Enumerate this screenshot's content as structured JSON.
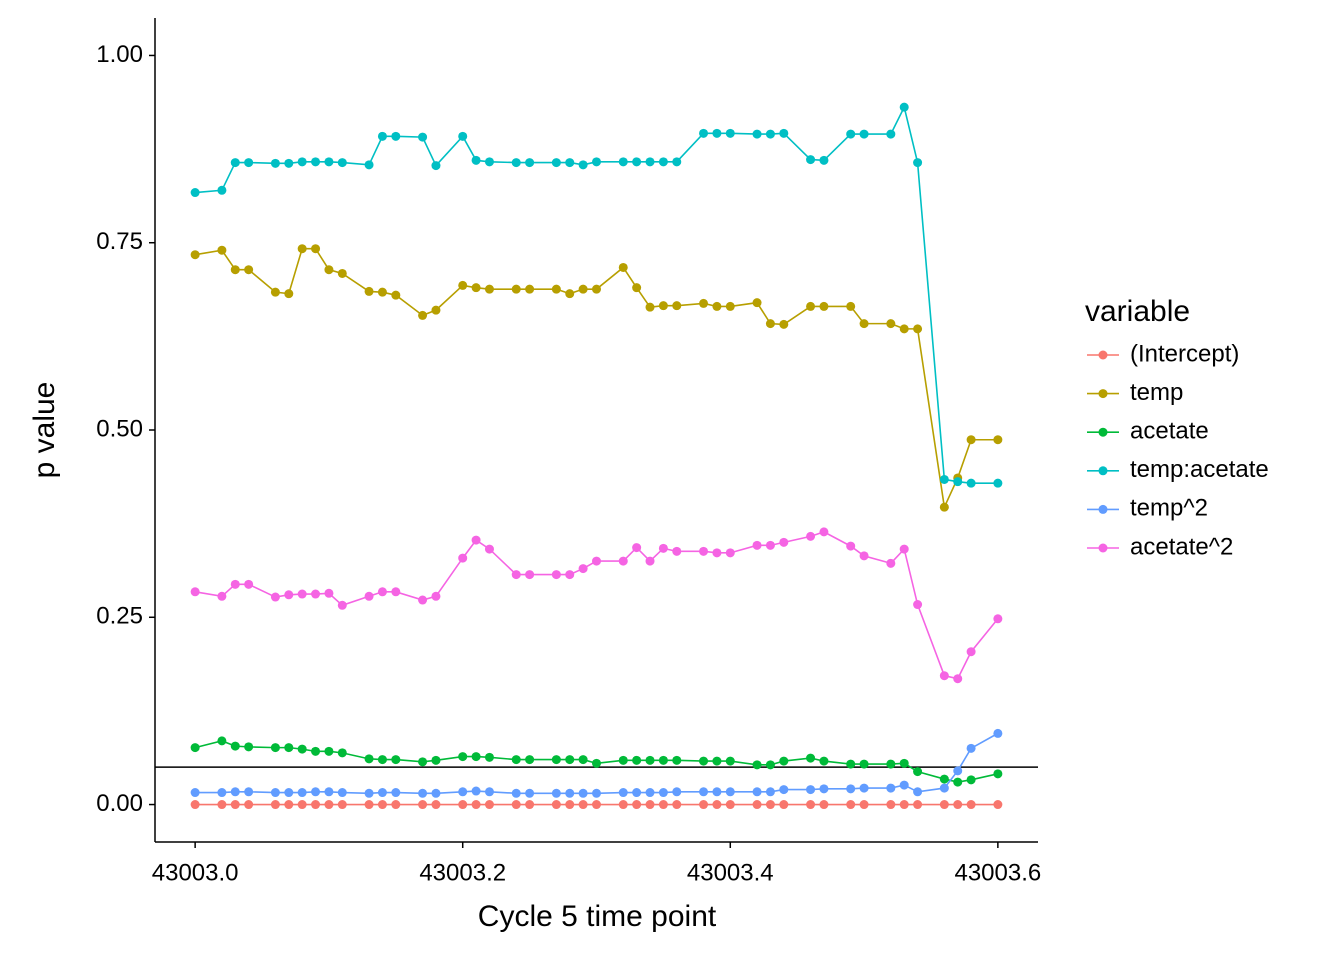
{
  "chart_data": {
    "type": "line",
    "x_label": "Cycle 5 time point",
    "y_label": "p value",
    "legend_title": "variable",
    "legend_position": "right",
    "x": [
      43003.0,
      43003.02,
      43003.03,
      43003.04,
      43003.06,
      43003.07,
      43003.08,
      43003.09,
      43003.1,
      43003.11,
      43003.13,
      43003.14,
      43003.15,
      43003.17,
      43003.18,
      43003.2,
      43003.21,
      43003.22,
      43003.24,
      43003.25,
      43003.27,
      43003.28,
      43003.29,
      43003.3,
      43003.32,
      43003.33,
      43003.34,
      43003.35,
      43003.36,
      43003.38,
      43003.39,
      43003.4,
      43003.42,
      43003.43,
      43003.44,
      43003.46,
      43003.47,
      43003.49,
      43003.5,
      43003.52,
      43003.53,
      43003.54,
      43003.56,
      43003.57,
      43003.58,
      43003.6
    ],
    "series": [
      {
        "name": "(Intercept)",
        "color": "#F8766D",
        "values": [
          0,
          0,
          0,
          0,
          0,
          0,
          0,
          0,
          0,
          0,
          0,
          0,
          0,
          0,
          0,
          0,
          0,
          0,
          0,
          0,
          0,
          0,
          0,
          0,
          0,
          0,
          0,
          0,
          0,
          0,
          0,
          0,
          0,
          0,
          0,
          0,
          0,
          0,
          0,
          0,
          0,
          0,
          0,
          0,
          0,
          0
        ]
      },
      {
        "name": "temp",
        "color": "#B79F00",
        "values": [
          0.734,
          0.74,
          0.714,
          0.714,
          0.684,
          0.682,
          0.742,
          0.742,
          0.714,
          0.709,
          0.685,
          0.684,
          0.68,
          0.653,
          0.66,
          0.693,
          0.69,
          0.688,
          0.688,
          0.688,
          0.688,
          0.682,
          0.688,
          0.688,
          0.717,
          0.69,
          0.664,
          0.666,
          0.666,
          0.669,
          0.665,
          0.665,
          0.67,
          0.642,
          0.641,
          0.665,
          0.665,
          0.665,
          0.642,
          0.642,
          0.635,
          0.635,
          0.397,
          0.436,
          0.487,
          0.487
        ]
      },
      {
        "name": "acetate",
        "color": "#00BA38",
        "values": [
          0.076,
          0.085,
          0.078,
          0.077,
          0.076,
          0.076,
          0.074,
          0.071,
          0.071,
          0.069,
          0.061,
          0.06,
          0.06,
          0.057,
          0.059,
          0.064,
          0.064,
          0.063,
          0.06,
          0.06,
          0.06,
          0.06,
          0.06,
          0.055,
          0.059,
          0.059,
          0.059,
          0.059,
          0.059,
          0.058,
          0.058,
          0.058,
          0.053,
          0.053,
          0.058,
          0.062,
          0.058,
          0.054,
          0.054,
          0.054,
          0.055,
          0.044,
          0.034,
          0.03,
          0.033,
          0.041
        ]
      },
      {
        "name": "temp:acetate",
        "color": "#00BFC4",
        "values": [
          0.817,
          0.82,
          0.857,
          0.857,
          0.856,
          0.856,
          0.858,
          0.858,
          0.858,
          0.857,
          0.854,
          0.892,
          0.892,
          0.891,
          0.853,
          0.892,
          0.86,
          0.858,
          0.857,
          0.857,
          0.857,
          0.857,
          0.854,
          0.858,
          0.858,
          0.858,
          0.858,
          0.858,
          0.858,
          0.896,
          0.896,
          0.896,
          0.895,
          0.895,
          0.896,
          0.861,
          0.86,
          0.895,
          0.895,
          0.895,
          0.931,
          0.857,
          0.434,
          0.431,
          0.429,
          0.429
        ]
      },
      {
        "name": "temp^2",
        "color": "#619CFF",
        "values": [
          0.016,
          0.016,
          0.017,
          0.017,
          0.016,
          0.016,
          0.016,
          0.017,
          0.017,
          0.016,
          0.015,
          0.016,
          0.016,
          0.015,
          0.015,
          0.017,
          0.018,
          0.017,
          0.015,
          0.015,
          0.015,
          0.015,
          0.015,
          0.015,
          0.016,
          0.016,
          0.016,
          0.016,
          0.017,
          0.017,
          0.017,
          0.017,
          0.017,
          0.017,
          0.02,
          0.02,
          0.021,
          0.021,
          0.022,
          0.022,
          0.026,
          0.017,
          0.022,
          0.045,
          0.075,
          0.095
        ]
      },
      {
        "name": "acetate^2",
        "color": "#F564E3",
        "values": [
          0.284,
          0.278,
          0.294,
          0.294,
          0.277,
          0.28,
          0.281,
          0.281,
          0.282,
          0.266,
          0.278,
          0.284,
          0.284,
          0.273,
          0.278,
          0.329,
          0.353,
          0.341,
          0.307,
          0.307,
          0.307,
          0.307,
          0.315,
          0.325,
          0.325,
          0.343,
          0.325,
          0.342,
          0.338,
          0.338,
          0.336,
          0.336,
          0.346,
          0.346,
          0.35,
          0.358,
          0.364,
          0.345,
          0.332,
          0.322,
          0.341,
          0.267,
          0.172,
          0.168,
          0.204,
          0.248
        ]
      }
    ],
    "hline": 0.05,
    "xlim": [
      43002.97,
      43003.63
    ],
    "xticks": [
      {
        "value": 43003.0,
        "label": "43003.0"
      },
      43003.2,
      43003.4,
      43003.6
    ],
    "ylim": [
      -0.05,
      1.05
    ],
    "yticks": [
      {
        "value": 0,
        "label": "0.00"
      },
      {
        "value": 0.25,
        "label": "0.25"
      },
      {
        "value": 0.5,
        "label": "0.50"
      },
      {
        "value": 0.75,
        "label": "0.75"
      },
      {
        "value": 1,
        "label": "1.00"
      }
    ],
    "grid": false
  }
}
